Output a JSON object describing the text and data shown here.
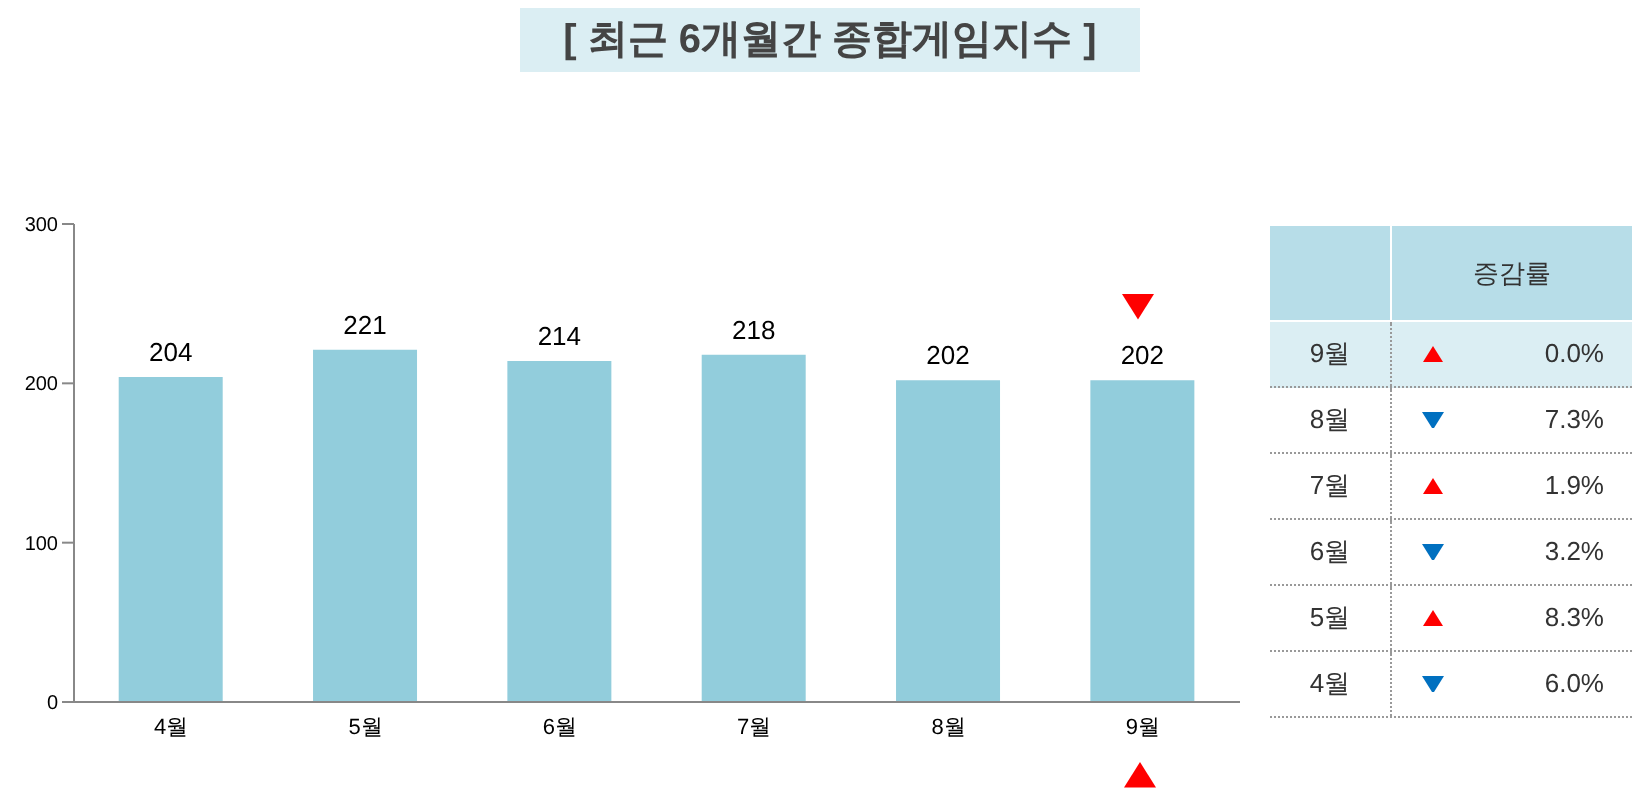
{
  "chart_data": [
    {
      "type": "bar",
      "title": "[ 최근 6개월간 종합게임지수 ]",
      "categories": [
        "4월",
        "5월",
        "6월",
        "7월",
        "8월",
        "9월"
      ],
      "values": [
        204,
        221,
        214,
        218,
        202,
        202
      ],
      "color": "#92cddc",
      "ylim": [
        0,
        300
      ],
      "yticks": [
        0,
        100,
        200,
        300
      ],
      "data_labels": true
    },
    {
      "type": "heatmap",
      "categories": [
        "증감률"
      ],
      "y_categories": [
        "9월",
        "8월",
        "7월",
        "6월",
        "5월",
        "4월"
      ],
      "cells": [
        [
          0.0
        ],
        [
          7.3
        ],
        [
          1.9
        ],
        [
          3.2
        ],
        [
          8.3
        ],
        [
          6.0
        ]
      ],
      "cell_labels": [
        [
          "0.0%"
        ],
        [
          "7.3%"
        ],
        [
          "1.9%"
        ],
        [
          "3.2%"
        ],
        [
          "8.3%"
        ],
        [
          "6.0%"
        ]
      ],
      "colors": [
        "#ff0000",
        "#0070c0",
        "#ff0000",
        "#0070c0",
        "#ff0000",
        "#0070c0"
      ]
    }
  ]
}
